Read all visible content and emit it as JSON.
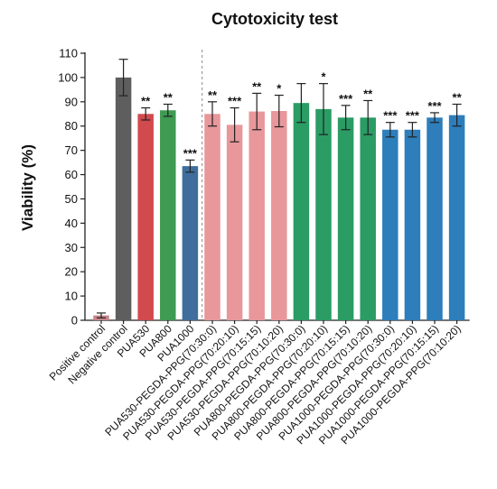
{
  "chart_data": {
    "type": "bar",
    "title": "Cytotoxicity test",
    "xlabel": "",
    "ylabel": "Viability (%)",
    "ylim": [
      0,
      110
    ],
    "yticks": [
      0,
      10,
      20,
      30,
      40,
      50,
      60,
      70,
      80,
      90,
      100,
      110
    ],
    "grid": false,
    "legend": "none",
    "group_separator_after": "PUA1000",
    "categories": [
      "Positive control",
      "Negative control",
      "PUA530",
      "PUA800",
      "PUA1000",
      "PUA530-PEGDA-PPG(70:30:0)",
      "PUA530-PEGDA-PPG(70:20:10)",
      "PUA530-PEGDA-PPG(70:15:15)",
      "PUA530-PEGDA-PPG(70:10:20)",
      "PUA800-PEGDA-PPG(70:30:0)",
      "PUA800-PEGDA-PPG(70:20:10)",
      "PUA800-PEGDA-PPG(70:15:15)",
      "PUA800-PEGDA-PPG(70:10:20)",
      "PUA1000-PEGDA-PPG(70:30:0)",
      "PUA1000-PEGDA-PPG(70:20:10)",
      "PUA1000-PEGDA-PPG(70:15:15)",
      "PUA1000-PEGDA-PPG(70:10:20)"
    ],
    "values": [
      2,
      100,
      85,
      86.5,
      63.5,
      85,
      80.5,
      86,
      86.2,
      89.5,
      87,
      83.5,
      83.5,
      78.5,
      78.5,
      83.5,
      84.5
    ],
    "errors": [
      1,
      7.5,
      2.5,
      2.5,
      2.5,
      5,
      7,
      7.5,
      6.5,
      8,
      10.5,
      5,
      7,
      3,
      3,
      2,
      4.5
    ],
    "significance": [
      "",
      "",
      "**",
      "**",
      "***",
      "**",
      "***",
      "**",
      "*",
      "",
      "*",
      "***",
      "**",
      "***",
      "***",
      "***",
      "**"
    ],
    "colors": [
      "#c7848a",
      "#5e5e5e",
      "#d14a4e",
      "#3f9a52",
      "#3f6e9d",
      "#e8979b",
      "#e8979b",
      "#e8979b",
      "#e8979b",
      "#2a9c64",
      "#2a9c64",
      "#2a9c64",
      "#2a9c64",
      "#2d7ebb",
      "#2d7ebb",
      "#2d7ebb",
      "#2d7ebb"
    ]
  }
}
